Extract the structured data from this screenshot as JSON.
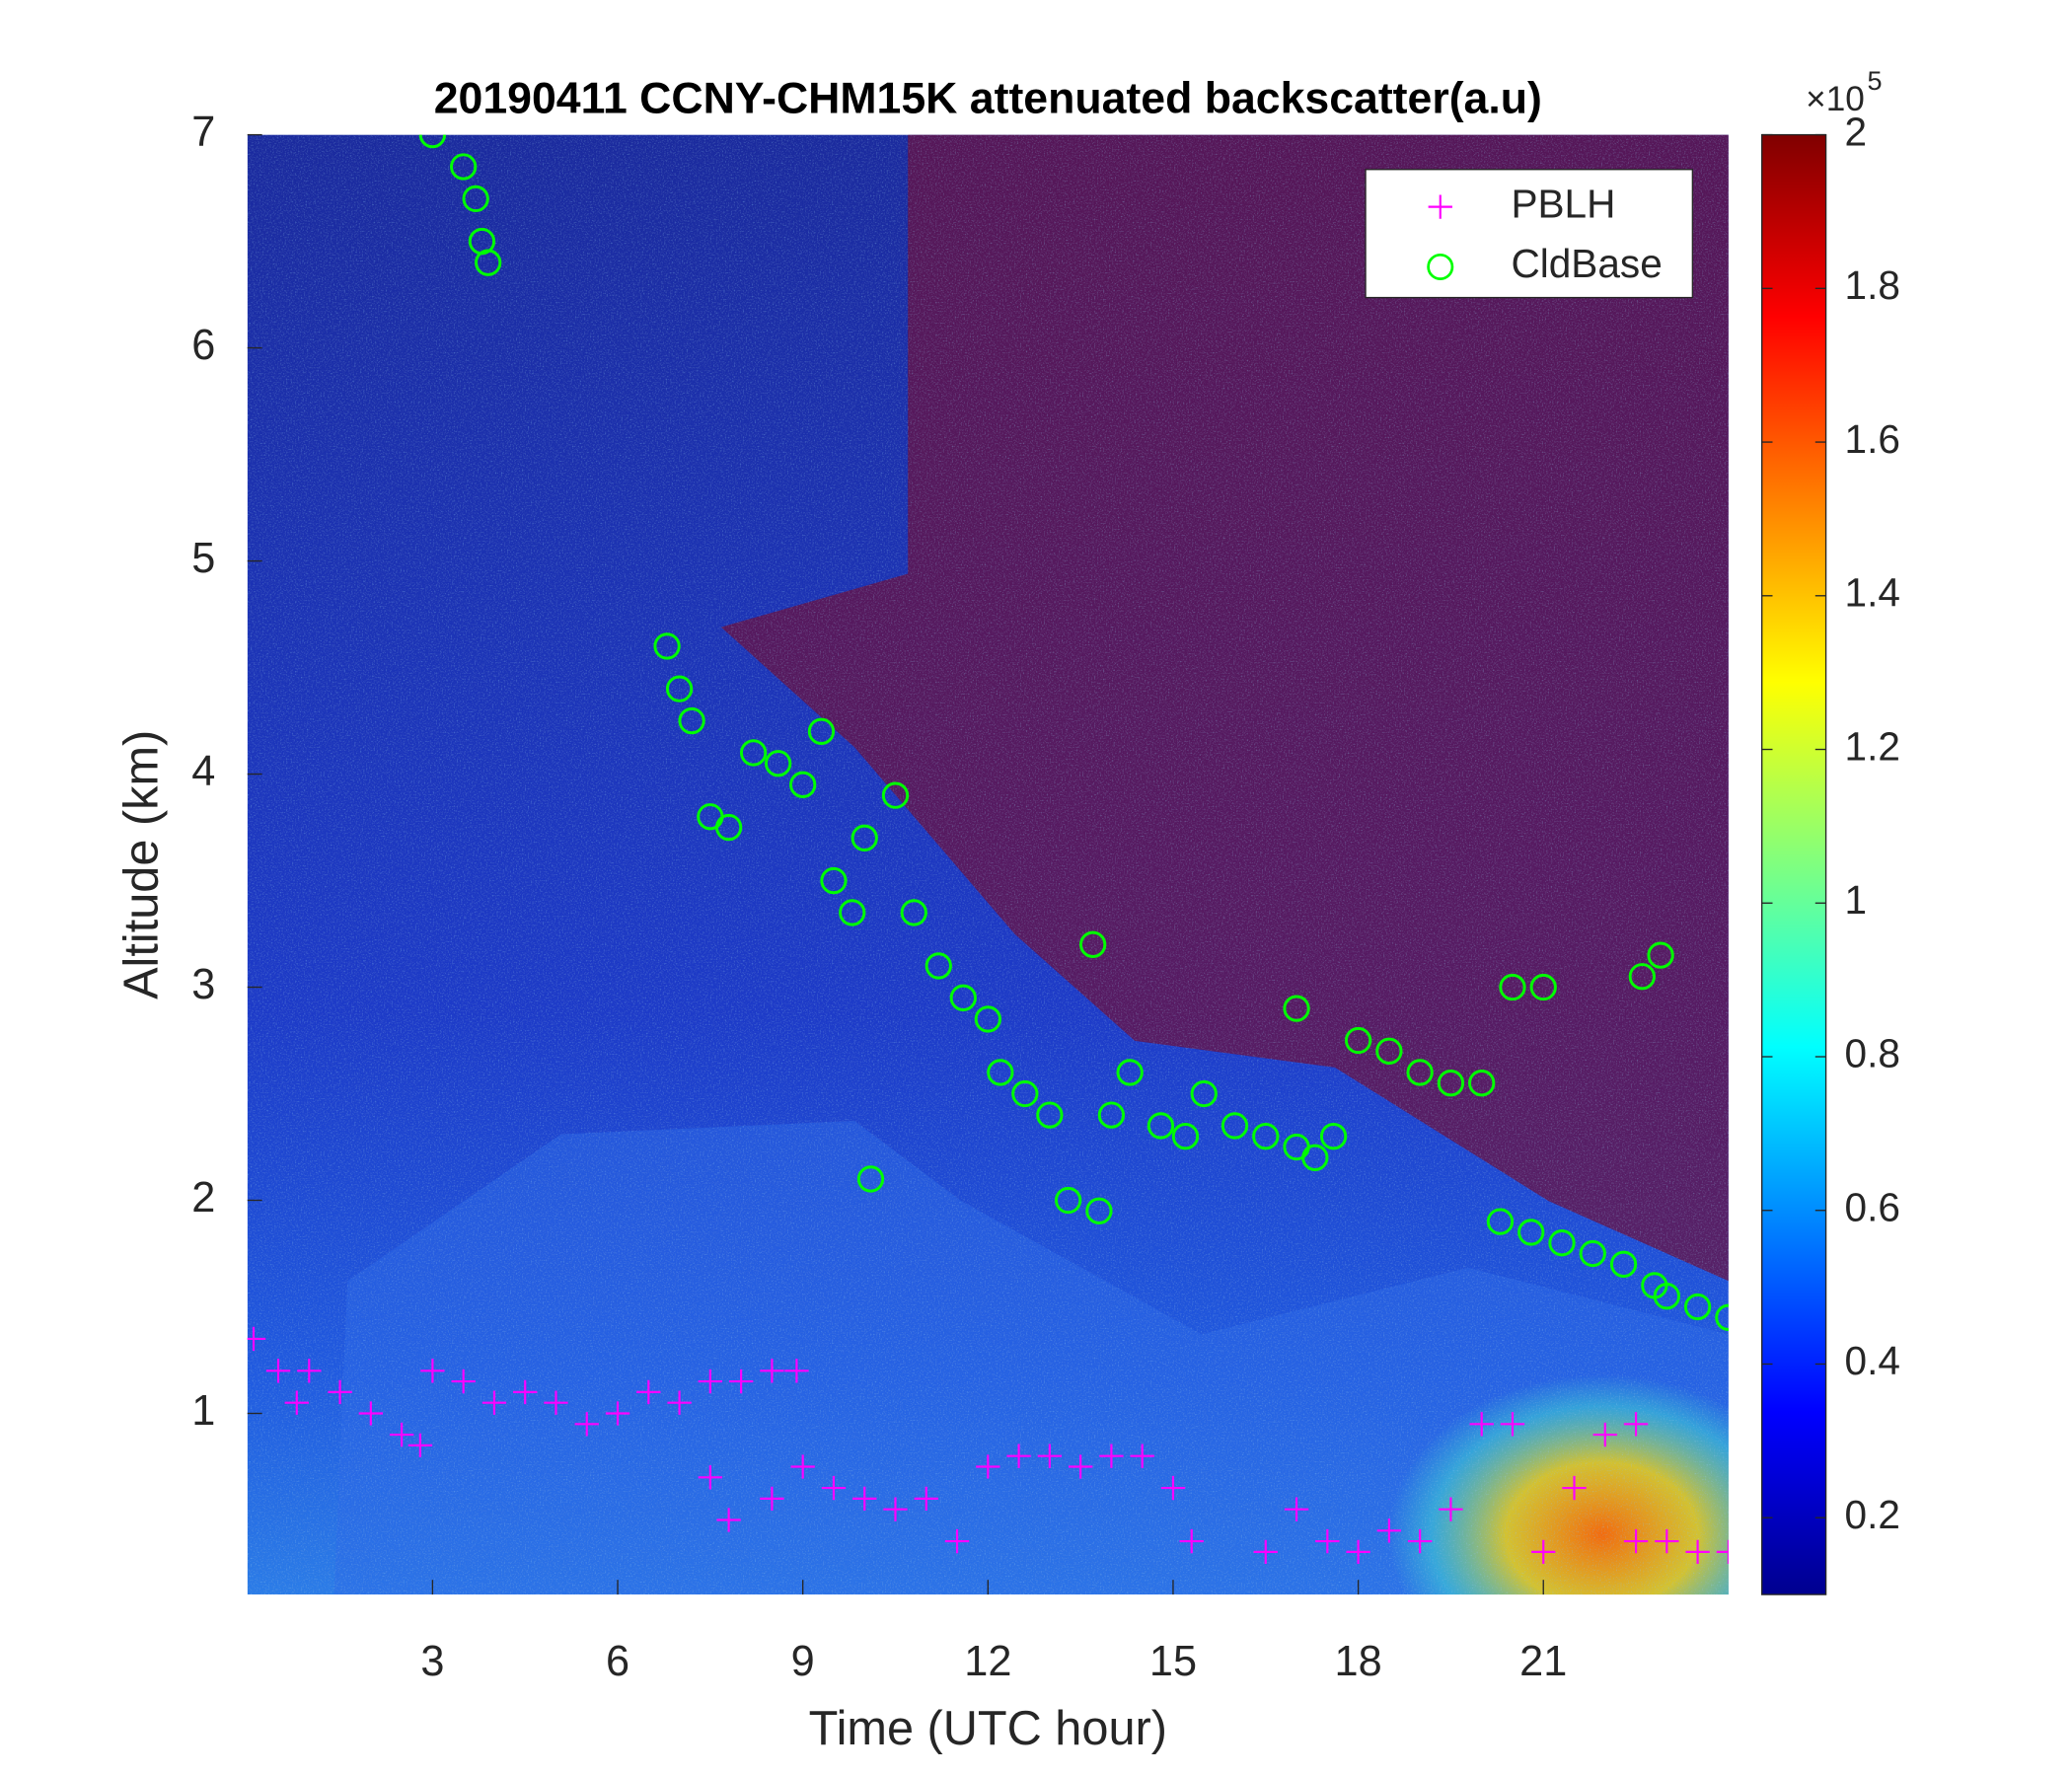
{
  "chart_data": {
    "type": "scatter",
    "title": "20190411 CCNY-CHM15K attenuated backscatter(a.u)",
    "x_label": "Time (UTC hour)",
    "y_label": "Altitude (km)",
    "xlim": [
      0,
      24
    ],
    "xticks": [
      3,
      6,
      9,
      12,
      15,
      18,
      21
    ],
    "ylim": [
      0.15,
      7
    ],
    "yticks": [
      1,
      2,
      3,
      4,
      5,
      6,
      7
    ],
    "legend": "upper right",
    "colorbar": {
      "colormap": "jet",
      "lim": [
        0.1,
        2
      ],
      "ticks": [
        0.2,
        0.4,
        0.6,
        0.8,
        1,
        1.2,
        1.4,
        1.6,
        1.8,
        2
      ],
      "scale_label": "×10",
      "scale_exponent": "5"
    },
    "series": [
      {
        "name": "PBLH",
        "marker": "+",
        "color": "#ff00ff",
        "x": [
          0.1,
          0.5,
          0.8,
          1.0,
          1.5,
          2.0,
          2.5,
          2.8,
          3.0,
          3.5,
          4.0,
          4.5,
          5.0,
          5.5,
          6.0,
          6.5,
          7.0,
          7.5,
          8.0,
          8.5,
          8.9,
          7.5,
          7.8,
          8.5,
          9.0,
          9.5,
          10.0,
          10.5,
          11.0,
          11.5,
          12.0,
          12.5,
          13.0,
          13.5,
          14.0,
          14.5,
          15.0,
          15.3,
          16.5,
          17.0,
          17.5,
          18.0,
          18.5,
          19.0,
          19.5,
          20.0,
          20.5,
          21.0,
          21.5,
          22.0,
          22.5,
          22.5,
          23.0,
          23.5,
          24.0
        ],
        "values": [
          1.35,
          1.2,
          1.05,
          1.2,
          1.1,
          1.0,
          0.9,
          0.85,
          1.2,
          1.15,
          1.05,
          1.1,
          1.05,
          0.95,
          1.0,
          1.1,
          1.05,
          1.15,
          1.15,
          1.2,
          1.2,
          0.7,
          0.5,
          0.6,
          0.75,
          0.65,
          0.6,
          0.55,
          0.6,
          0.4,
          0.75,
          0.8,
          0.8,
          0.75,
          0.8,
          0.8,
          0.65,
          0.4,
          0.35,
          0.55,
          0.4,
          0.35,
          0.45,
          0.4,
          0.55,
          0.95,
          0.95,
          0.35,
          0.65,
          0.9,
          0.95,
          0.4,
          0.4,
          0.35,
          0.35
        ]
      },
      {
        "name": "CldBase",
        "marker": "o",
        "color": "#00ff00",
        "x": [
          3.0,
          3.5,
          3.7,
          3.8,
          3.9,
          6.8,
          7.0,
          7.2,
          7.5,
          7.8,
          8.2,
          8.6,
          9.0,
          9.3,
          9.5,
          9.8,
          10.0,
          10.5,
          10.8,
          11.2,
          11.6,
          12.0,
          12.2,
          12.6,
          13.0,
          13.3,
          13.8,
          14.0,
          14.3,
          14.8,
          15.2,
          15.5,
          16.0,
          16.5,
          17.0,
          17.3,
          17.6,
          18.0,
          18.5,
          19.0,
          19.5,
          20.0,
          20.5,
          21.0,
          20.3,
          20.8,
          21.3,
          21.8,
          22.3,
          22.8,
          23.0,
          23.5,
          24.0,
          22.6,
          22.9,
          13.7,
          10.1,
          17.0
        ],
        "values": [
          7.0,
          6.85,
          6.7,
          6.5,
          6.4,
          4.6,
          4.4,
          4.25,
          3.8,
          3.75,
          4.1,
          4.05,
          3.95,
          4.2,
          3.5,
          3.35,
          3.7,
          3.9,
          3.35,
          3.1,
          2.95,
          2.85,
          2.6,
          2.5,
          2.4,
          2.0,
          1.95,
          2.4,
          2.6,
          2.35,
          2.3,
          2.5,
          2.35,
          2.3,
          2.25,
          2.2,
          2.3,
          2.75,
          2.7,
          2.6,
          2.55,
          2.55,
          3.0,
          3.0,
          1.9,
          1.85,
          1.8,
          1.75,
          1.7,
          1.6,
          1.55,
          1.5,
          1.45,
          3.05,
          3.15,
          3.2,
          2.1,
          2.9
        ]
      }
    ]
  }
}
